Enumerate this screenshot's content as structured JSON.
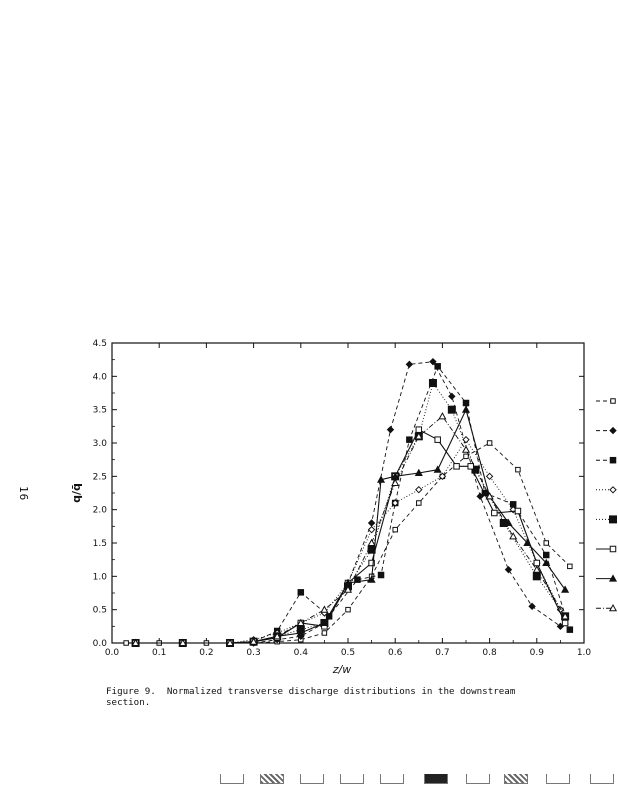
{
  "page_number": "16",
  "caption": {
    "label": "Figure 9.",
    "text": "Normalized transverse discharge distributions in the downstream\nsection."
  },
  "chart_data": {
    "type": "line",
    "xlabel": "z/w",
    "ylabel": "q/q̄",
    "xlim": [
      0.0,
      1.0
    ],
    "ylim": [
      0.0,
      4.5
    ],
    "x_ticks": [
      0.0,
      0.1,
      0.2,
      0.3,
      0.4,
      0.5,
      0.6,
      0.7,
      0.8,
      0.9,
      1.0
    ],
    "y_ticks": [
      0.0,
      0.5,
      1.0,
      1.5,
      2.0,
      2.5,
      3.0,
      3.5,
      4.0,
      4.5
    ],
    "grid": false,
    "legend_position": "right",
    "series": [
      {
        "style": "dashed",
        "marker": "square-open-small",
        "x": [
          0.03,
          0.1,
          0.2,
          0.3,
          0.35,
          0.4,
          0.45,
          0.5,
          0.55,
          0.6,
          0.65,
          0.7,
          0.75,
          0.8,
          0.86,
          0.92,
          0.97
        ],
        "y": [
          0.0,
          0.0,
          0.0,
          0.0,
          0.02,
          0.05,
          0.15,
          0.5,
          1.0,
          1.7,
          2.1,
          2.5,
          2.8,
          3.0,
          2.6,
          1.5,
          1.15
        ]
      },
      {
        "style": "dashed",
        "marker": "diamond-filled",
        "x": [
          0.05,
          0.15,
          0.25,
          0.3,
          0.35,
          0.4,
          0.45,
          0.5,
          0.55,
          0.59,
          0.63,
          0.68,
          0.72,
          0.78,
          0.84,
          0.89,
          0.95
        ],
        "y": [
          0.0,
          0.0,
          0.0,
          0.0,
          0.05,
          0.1,
          0.3,
          0.9,
          1.8,
          3.2,
          4.18,
          4.22,
          3.7,
          2.2,
          1.1,
          0.55,
          0.25
        ]
      },
      {
        "style": "dashed",
        "marker": "square-filled",
        "x": [
          0.05,
          0.15,
          0.25,
          0.3,
          0.35,
          0.4,
          0.46,
          0.52,
          0.57,
          0.6,
          0.63,
          0.69,
          0.75,
          0.79,
          0.85,
          0.92,
          0.97
        ],
        "y": [
          0.0,
          0.0,
          0.0,
          0.02,
          0.18,
          0.76,
          0.4,
          0.95,
          1.02,
          2.1,
          3.05,
          4.15,
          3.6,
          2.25,
          2.08,
          1.32,
          0.2
        ]
      },
      {
        "style": "dotted",
        "marker": "diamond-open",
        "x": [
          0.05,
          0.15,
          0.25,
          0.3,
          0.35,
          0.4,
          0.45,
          0.5,
          0.55,
          0.6,
          0.65,
          0.7,
          0.75,
          0.8,
          0.85,
          0.9,
          0.95
        ],
        "y": [
          0.0,
          0.0,
          0.0,
          0.05,
          0.15,
          0.3,
          0.45,
          0.9,
          1.7,
          2.1,
          2.3,
          2.5,
          3.05,
          2.5,
          2.0,
          1.2,
          0.5
        ]
      },
      {
        "style": "dotted",
        "marker": "square-filled-large",
        "x": [
          0.05,
          0.15,
          0.25,
          0.3,
          0.35,
          0.4,
          0.45,
          0.5,
          0.55,
          0.6,
          0.65,
          0.68,
          0.72,
          0.77,
          0.83,
          0.9,
          0.96
        ],
        "y": [
          0.0,
          0.0,
          0.0,
          0.02,
          0.1,
          0.2,
          0.3,
          0.85,
          1.4,
          2.5,
          3.1,
          3.9,
          3.5,
          2.6,
          1.8,
          1.0,
          0.4
        ]
      },
      {
        "style": "solid",
        "marker": "square-open",
        "x": [
          0.05,
          0.15,
          0.25,
          0.3,
          0.35,
          0.4,
          0.45,
          0.5,
          0.55,
          0.6,
          0.65,
          0.69,
          0.73,
          0.76,
          0.81,
          0.86,
          0.9,
          0.96
        ],
        "y": [
          0.0,
          0.0,
          0.0,
          0.02,
          0.08,
          0.3,
          0.25,
          0.9,
          1.2,
          2.5,
          3.2,
          3.05,
          2.65,
          2.65,
          1.95,
          1.98,
          1.2,
          0.3
        ]
      },
      {
        "style": "solid",
        "marker": "triangle-filled",
        "x": [
          0.05,
          0.15,
          0.25,
          0.3,
          0.35,
          0.4,
          0.45,
          0.5,
          0.55,
          0.57,
          0.6,
          0.65,
          0.69,
          0.75,
          0.8,
          0.84,
          0.88,
          0.92,
          0.96
        ],
        "y": [
          0.0,
          0.0,
          0.0,
          0.02,
          0.1,
          0.15,
          0.3,
          0.9,
          0.95,
          2.45,
          2.5,
          2.55,
          2.6,
          3.5,
          2.2,
          1.8,
          1.5,
          1.2,
          0.8
        ]
      },
      {
        "style": "dash-dot",
        "marker": "triangle-open",
        "x": [
          0.05,
          0.15,
          0.25,
          0.3,
          0.35,
          0.4,
          0.45,
          0.5,
          0.55,
          0.6,
          0.65,
          0.7,
          0.75,
          0.8,
          0.85,
          0.9,
          0.96
        ],
        "y": [
          0.0,
          0.0,
          0.0,
          0.02,
          0.1,
          0.3,
          0.5,
          0.8,
          1.5,
          2.4,
          3.1,
          3.4,
          2.9,
          2.2,
          1.6,
          1.1,
          0.4
        ]
      }
    ]
  },
  "footer_strip": {
    "boxes": [
      "open",
      "hatched",
      "open",
      "open",
      "open",
      "dark",
      "open",
      "hatched",
      "open",
      "open"
    ]
  }
}
